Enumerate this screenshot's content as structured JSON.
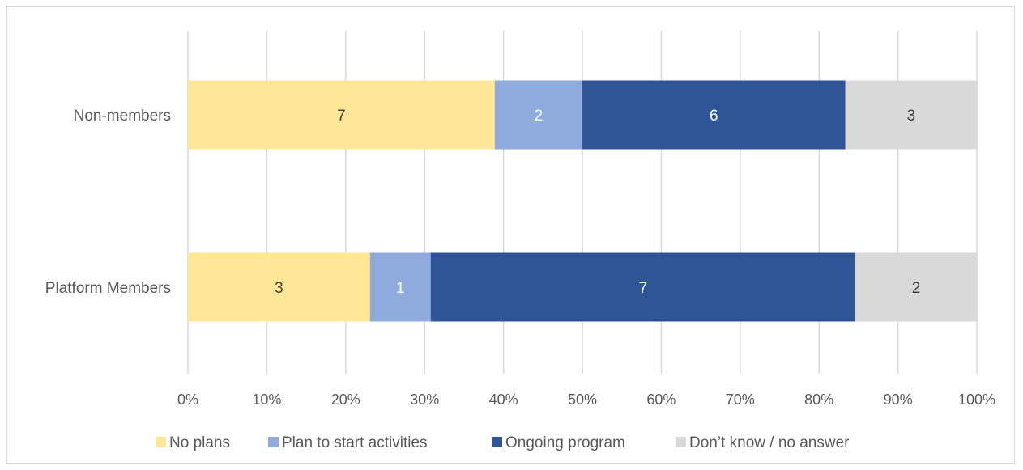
{
  "chart_data": {
    "type": "bar",
    "orientation": "horizontal",
    "stacked": "percent",
    "categories": [
      "Non-members",
      "Platform Members"
    ],
    "series": [
      {
        "name": "No plans",
        "values": [
          7,
          3
        ],
        "color": "#ffe699"
      },
      {
        "name": "Plan to start activities",
        "values": [
          2,
          1
        ],
        "color": "#8faadc"
      },
      {
        "name": "Ongoing program",
        "values": [
          6,
          7
        ],
        "color": "#2f5597"
      },
      {
        "name": "Don’t know / no answer",
        "values": [
          3,
          2
        ],
        "color": "#d9d9d9"
      }
    ],
    "data_label_colors": [
      "#404040",
      "#ffffff",
      "#ffffff",
      "#404040"
    ],
    "xlim": [
      0,
      100
    ],
    "xticks": [
      "0%",
      "10%",
      "20%",
      "30%",
      "40%",
      "50%",
      "60%",
      "70%",
      "80%",
      "90%",
      "100%"
    ],
    "grid": true,
    "legend": "bottom"
  }
}
